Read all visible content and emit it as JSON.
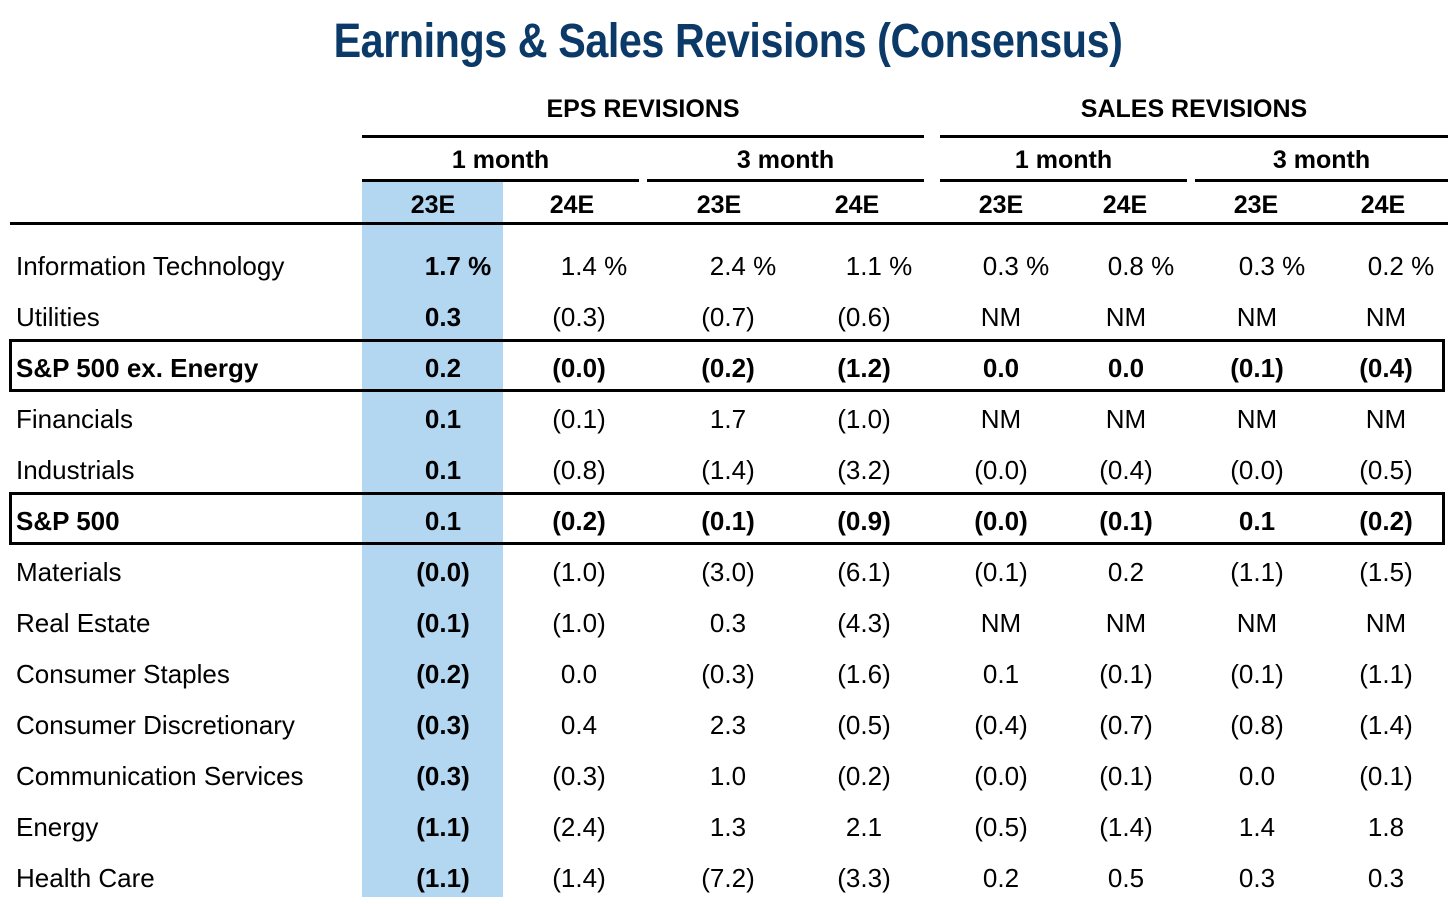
{
  "title": "Earnings & Sales Revisions (Consensus)",
  "groups": {
    "eps": "EPS REVISIONS",
    "sales": "SALES REVISIONS"
  },
  "periods": [
    "1 month",
    "3 month",
    "1 month",
    "3 month"
  ],
  "columns": [
    "23E",
    "24E",
    "23E",
    "24E",
    "23E",
    "24E",
    "23E",
    "24E"
  ],
  "colors": {
    "title": "#0c3a68",
    "highlight": "#b3d6f1"
  },
  "chart_data": {
    "type": "table",
    "title": "Earnings & Sales Revisions (Consensus)",
    "rows": [
      {
        "label": "Information Technology",
        "bold": false,
        "values": [
          "1.7 %",
          "1.4 %",
          "2.4 %",
          "1.1 %",
          "0.3 %",
          "0.8 %",
          "0.3 %",
          "0.2 %"
        ]
      },
      {
        "label": "Utilities",
        "bold": false,
        "values": [
          "0.3",
          "(0.3)",
          "(0.7)",
          "(0.6)",
          "NM",
          "NM",
          "NM",
          "NM"
        ]
      },
      {
        "label": "S&P 500 ex. Energy",
        "bold": true,
        "values": [
          "0.2",
          "(0.0)",
          "(0.2)",
          "(1.2)",
          "0.0",
          "0.0",
          "(0.1)",
          "(0.4)"
        ]
      },
      {
        "label": "Financials",
        "bold": false,
        "values": [
          "0.1",
          "(0.1)",
          "1.7",
          "(1.0)",
          "NM",
          "NM",
          "NM",
          "NM"
        ]
      },
      {
        "label": "Industrials",
        "bold": false,
        "values": [
          "0.1",
          "(0.8)",
          "(1.4)",
          "(3.2)",
          "(0.0)",
          "(0.4)",
          "(0.0)",
          "(0.5)"
        ]
      },
      {
        "label": "S&P 500",
        "bold": true,
        "values": [
          "0.1",
          "(0.2)",
          "(0.1)",
          "(0.9)",
          "(0.0)",
          "(0.1)",
          "0.1",
          "(0.2)"
        ]
      },
      {
        "label": "Materials",
        "bold": false,
        "values": [
          "(0.0)",
          "(1.0)",
          "(3.0)",
          "(6.1)",
          "(0.1)",
          "0.2",
          "(1.1)",
          "(1.5)"
        ]
      },
      {
        "label": "Real Estate",
        "bold": false,
        "values": [
          "(0.1)",
          "(1.0)",
          "0.3",
          "(4.3)",
          "NM",
          "NM",
          "NM",
          "NM"
        ]
      },
      {
        "label": "Consumer Staples",
        "bold": false,
        "values": [
          "(0.2)",
          "0.0",
          "(0.3)",
          "(1.6)",
          "0.1",
          "(0.1)",
          "(0.1)",
          "(1.1)"
        ]
      },
      {
        "label": "Consumer Discretionary",
        "bold": false,
        "values": [
          "(0.3)",
          "0.4",
          "2.3",
          "(0.5)",
          "(0.4)",
          "(0.7)",
          "(0.8)",
          "(1.4)"
        ]
      },
      {
        "label": "Communication Services",
        "bold": false,
        "values": [
          "(0.3)",
          "(0.3)",
          "1.0",
          "(0.2)",
          "(0.0)",
          "(0.1)",
          "0.0",
          "(0.1)"
        ]
      },
      {
        "label": "Energy",
        "bold": false,
        "values": [
          "(1.1)",
          "(2.4)",
          "1.3",
          "2.1",
          "(0.5)",
          "(1.4)",
          "1.4",
          "1.8"
        ]
      },
      {
        "label": "Health Care",
        "bold": false,
        "values": [
          "(1.1)",
          "(1.4)",
          "(7.2)",
          "(3.3)",
          "0.2",
          "0.5",
          "0.3",
          "0.3"
        ]
      }
    ]
  }
}
